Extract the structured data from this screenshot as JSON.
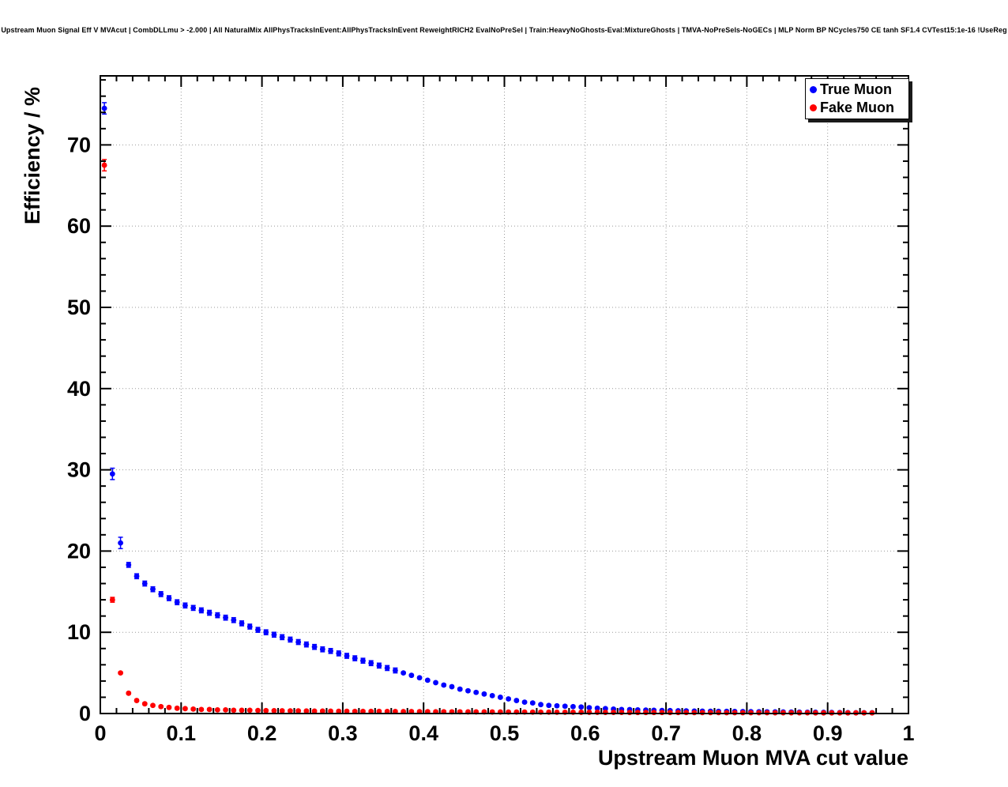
{
  "title": "Upstream Muon Signal Eff V MVAcut | CombDLLmu > -2.000 | All NaturalMix AllPhysTracksInEvent:AllPhysTracksInEvent ReweightRICH2 EvalNoPreSel | Train:HeavyNoGhosts-Eval:MixtureGhosts | TMVA-NoPreSels-NoGECs | MLP Norm BP NCycles750 CE tanh SF1.4 CVTest15:1e-16 !UseReg",
  "legend": {
    "entries": [
      {
        "label": "True Muon",
        "color": "#0000ff"
      },
      {
        "label": "Fake Muon",
        "color": "#ff0000"
      }
    ]
  },
  "colors": {
    "true_muon": "#0000ff",
    "fake_muon": "#ff0000",
    "frame": "#000000",
    "grid": "#999999",
    "background": "#ffffff"
  },
  "chart_data": {
    "type": "scatter",
    "title": "Upstream Muon Signal Eff V MVAcut | CombDLLmu > -2.000 | All NaturalMix AllPhysTracksInEvent:AllPhysTracksInEvent ReweightRICH2 EvalNoPreSel | Train:HeavyNoGhosts-Eval:MixtureGhosts | TMVA-NoPreSels-NoGECs | MLP Norm BP NCycles750 CE tanh SF1.4 CVTest15:1e-16 !UseReg",
    "xlabel": "Upstream Muon MVA cut value",
    "ylabel": "Efficiency / %",
    "xlim": [
      0,
      1
    ],
    "ylim": [
      0,
      78.5
    ],
    "grid": true,
    "grid_style": "dotted",
    "legend_position": "top-right",
    "marker_style": "filled-circle",
    "xticks": [
      0,
      0.1,
      0.2,
      0.3,
      0.4,
      0.5,
      0.6,
      0.7,
      0.8,
      0.9,
      1
    ],
    "xtick_labels": [
      "0",
      "0.1",
      "0.2",
      "0.3",
      "0.4",
      "0.5",
      "0.6",
      "0.7",
      "0.8",
      "0.9",
      "1"
    ],
    "yticks": [
      0,
      10,
      20,
      30,
      40,
      50,
      60,
      70
    ],
    "x": [
      0.005,
      0.015,
      0.025,
      0.035,
      0.045,
      0.055,
      0.065,
      0.075,
      0.085,
      0.095,
      0.105,
      0.115,
      0.125,
      0.135,
      0.145,
      0.155,
      0.165,
      0.175,
      0.185,
      0.195,
      0.205,
      0.215,
      0.225,
      0.235,
      0.245,
      0.255,
      0.265,
      0.275,
      0.285,
      0.295,
      0.305,
      0.315,
      0.325,
      0.335,
      0.345,
      0.355,
      0.365,
      0.375,
      0.385,
      0.395,
      0.405,
      0.415,
      0.425,
      0.435,
      0.445,
      0.455,
      0.465,
      0.475,
      0.485,
      0.495,
      0.505,
      0.515,
      0.525,
      0.535,
      0.545,
      0.555,
      0.565,
      0.575,
      0.585,
      0.595,
      0.605,
      0.615,
      0.625,
      0.635,
      0.645,
      0.655,
      0.665,
      0.675,
      0.685,
      0.695,
      0.705,
      0.715,
      0.725,
      0.735,
      0.745,
      0.755,
      0.765,
      0.775,
      0.785,
      0.795,
      0.805,
      0.815,
      0.825,
      0.835,
      0.845,
      0.855,
      0.865,
      0.875,
      0.885,
      0.895,
      0.905,
      0.915,
      0.925,
      0.935,
      0.945,
      0.955
    ],
    "series": [
      {
        "name": "True Muon",
        "color": "#0000ff",
        "y": [
          74.5,
          29.5,
          21.0,
          18.3,
          16.9,
          16.0,
          15.3,
          14.7,
          14.2,
          13.7,
          13.3,
          13.0,
          12.7,
          12.4,
          12.1,
          11.8,
          11.5,
          11.1,
          10.7,
          10.3,
          10.0,
          9.7,
          9.4,
          9.1,
          8.8,
          8.5,
          8.2,
          7.9,
          7.7,
          7.4,
          7.1,
          6.8,
          6.5,
          6.2,
          5.9,
          5.6,
          5.3,
          5.0,
          4.7,
          4.4,
          4.1,
          3.8,
          3.5,
          3.3,
          3.0,
          2.8,
          2.6,
          2.4,
          2.2,
          2.0,
          1.8,
          1.6,
          1.4,
          1.3,
          1.1,
          1.0,
          0.95,
          0.9,
          0.85,
          0.8,
          0.72,
          0.65,
          0.6,
          0.55,
          0.5,
          0.48,
          0.45,
          0.42,
          0.4,
          0.38,
          0.36,
          0.34,
          0.32,
          0.3,
          0.29,
          0.28,
          0.27,
          0.26,
          0.25,
          0.24,
          0.23,
          0.22,
          0.21,
          0.2,
          0.19,
          0.18,
          0.17,
          0.16,
          0.15,
          0.14,
          0.13,
          0.12,
          0.11,
          0.1,
          0.1,
          0.1
        ]
      },
      {
        "name": "Fake Muon",
        "color": "#ff0000",
        "y": [
          67.5,
          14.0,
          5.0,
          2.5,
          1.6,
          1.2,
          1.0,
          0.85,
          0.75,
          0.65,
          0.6,
          0.55,
          0.5,
          0.5,
          0.45,
          0.45,
          0.4,
          0.4,
          0.4,
          0.38,
          0.36,
          0.35,
          0.34,
          0.33,
          0.32,
          0.31,
          0.3,
          0.3,
          0.29,
          0.28,
          0.28,
          0.27,
          0.27,
          0.26,
          0.26,
          0.25,
          0.25,
          0.24,
          0.24,
          0.23,
          0.23,
          0.22,
          0.22,
          0.21,
          0.21,
          0.2,
          0.2,
          0.2,
          0.19,
          0.19,
          0.18,
          0.18,
          0.18,
          0.17,
          0.17,
          0.17,
          0.16,
          0.16,
          0.16,
          0.15,
          0.15,
          0.15,
          0.14,
          0.14,
          0.14,
          0.13,
          0.13,
          0.13,
          0.13,
          0.12,
          0.12,
          0.12,
          0.12,
          0.11,
          0.11,
          0.11,
          0.11,
          0.1,
          0.1,
          0.1,
          0.1,
          0.1,
          0.1,
          0.09,
          0.09,
          0.09,
          0.09,
          0.09,
          0.08,
          0.08,
          0.08,
          0.08,
          0.08,
          0.08,
          0.08,
          0.08
        ]
      }
    ]
  }
}
